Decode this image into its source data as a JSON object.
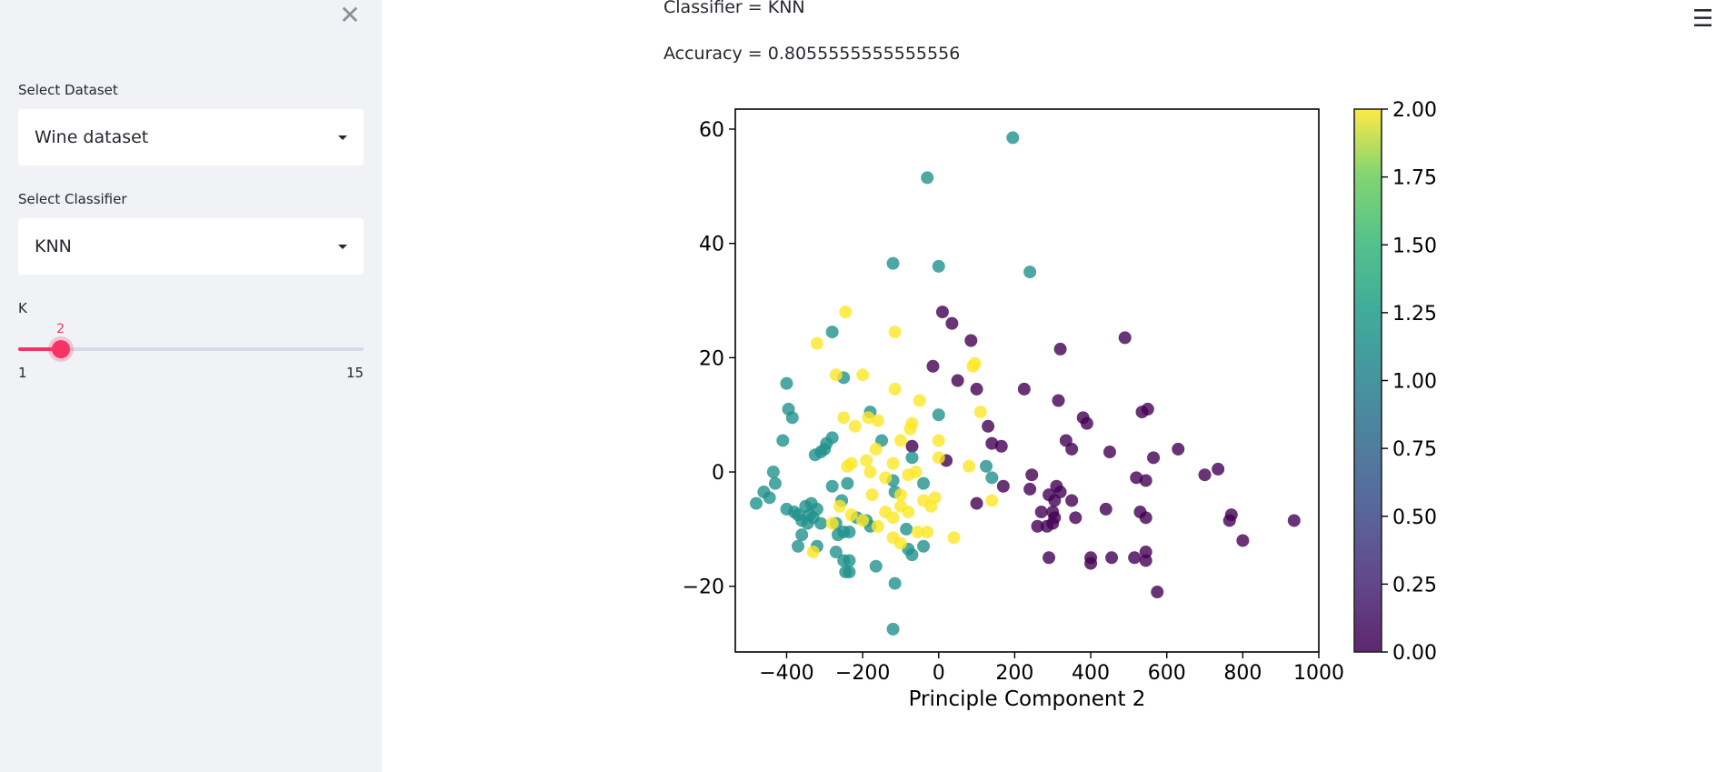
{
  "sidebar": {
    "dataset_label": "Select Dataset",
    "dataset_value": "Wine dataset",
    "classifier_label": "Select Classifier",
    "classifier_value": "KNN",
    "k_label": "K",
    "k_value": "2",
    "k_min": "1",
    "k_max": "15",
    "k_fraction": 0.0714
  },
  "main": {
    "classifier_text": "Classifier = KNN",
    "accuracy_text": "Accuracy = 0.8055555555555556"
  },
  "chart_data": {
    "type": "scatter",
    "xlabel": "Principle Component 2",
    "ylabel": "",
    "xlim": [
      -535,
      1000
    ],
    "ylim": [
      -31.5,
      63.5
    ],
    "xticks": [
      -400,
      -200,
      0,
      200,
      400,
      600,
      800,
      1000
    ],
    "yticks": [
      -20,
      0,
      20,
      40,
      60
    ],
    "colorbar": {
      "min": 0.0,
      "max": 2.0,
      "ticks": [
        "0.00",
        "0.25",
        "0.50",
        "0.75",
        "1.00",
        "1.25",
        "1.50",
        "1.75",
        "2.00"
      ],
      "colormap": "viridis"
    },
    "class_colors": {
      "0": "#440154",
      "1": "#21918c",
      "2": "#fde725"
    },
    "points": {
      "class0": [
        [
          10,
          28
        ],
        [
          35,
          26
        ],
        [
          85,
          23
        ],
        [
          -15,
          18.5
        ],
        [
          50,
          16
        ],
        [
          100,
          14.5
        ],
        [
          225,
          14.5
        ],
        [
          320,
          21.5
        ],
        [
          490,
          23.5
        ],
        [
          380,
          9.5
        ],
        [
          390,
          8.5
        ],
        [
          550,
          11
        ],
        [
          535,
          10.5
        ],
        [
          130,
          8
        ],
        [
          315,
          12.5
        ],
        [
          140,
          5
        ],
        [
          165,
          4.5
        ],
        [
          335,
          5.5
        ],
        [
          350,
          4
        ],
        [
          450,
          3.5
        ],
        [
          565,
          2.5
        ],
        [
          630,
          4
        ],
        [
          -70,
          4.5
        ],
        [
          20,
          2
        ],
        [
          520,
          -1
        ],
        [
          545,
          -1.5
        ],
        [
          700,
          -0.5
        ],
        [
          735,
          0.5
        ],
        [
          245,
          -0.5
        ],
        [
          310,
          -2.5
        ],
        [
          320,
          -3.5
        ],
        [
          240,
          -3
        ],
        [
          170,
          -2.5
        ],
        [
          290,
          -4
        ],
        [
          305,
          -5
        ],
        [
          350,
          -5
        ],
        [
          100,
          -5.5
        ],
        [
          270,
          -7
        ],
        [
          300,
          -7
        ],
        [
          305,
          -8
        ],
        [
          360,
          -8
        ],
        [
          440,
          -6.5
        ],
        [
          530,
          -7
        ],
        [
          545,
          -8
        ],
        [
          770,
          -7.5
        ],
        [
          765,
          -8.5
        ],
        [
          935,
          -8.5
        ],
        [
          300,
          -9
        ],
        [
          285,
          -9.5
        ],
        [
          260,
          -9.5
        ],
        [
          800,
          -12
        ],
        [
          290,
          -15
        ],
        [
          400,
          -15
        ],
        [
          400,
          -16
        ],
        [
          455,
          -15
        ],
        [
          515,
          -15
        ],
        [
          545,
          -14
        ],
        [
          545,
          -15.5
        ],
        [
          575,
          -21
        ]
      ],
      "class1": [
        [
          195,
          58.5
        ],
        [
          -30,
          51.5
        ],
        [
          0,
          36
        ],
        [
          -120,
          36.5
        ],
        [
          240,
          35
        ],
        [
          -280,
          24.5
        ],
        [
          -250,
          16.5
        ],
        [
          -400,
          15.5
        ],
        [
          -395,
          11
        ],
        [
          -385,
          9.5
        ],
        [
          -180,
          10.5
        ],
        [
          0,
          10
        ],
        [
          -150,
          5.5
        ],
        [
          -280,
          6
        ],
        [
          -295,
          5
        ],
        [
          -300,
          4
        ],
        [
          -310,
          3.5
        ],
        [
          -325,
          3
        ],
        [
          -410,
          5.5
        ],
        [
          -70,
          2.5
        ],
        [
          125,
          1
        ],
        [
          140,
          -1
        ],
        [
          -435,
          0
        ],
        [
          -430,
          -2
        ],
        [
          -240,
          -2
        ],
        [
          -280,
          -2.5
        ],
        [
          -120,
          -1.5
        ],
        [
          -40,
          -2
        ],
        [
          -115,
          -3.5
        ],
        [
          -460,
          -3.5
        ],
        [
          -445,
          -4.5
        ],
        [
          -255,
          -5
        ],
        [
          -480,
          -5.5
        ],
        [
          -335,
          -5.5
        ],
        [
          -350,
          -6
        ],
        [
          -320,
          -6.5
        ],
        [
          -400,
          -6.5
        ],
        [
          -380,
          -7
        ],
        [
          -370,
          -7.5
        ],
        [
          -340,
          -7.5
        ],
        [
          -330,
          -8
        ],
        [
          -360,
          -8.5
        ],
        [
          -345,
          -9
        ],
        [
          -310,
          -9
        ],
        [
          -270,
          -9
        ],
        [
          -215,
          -8
        ],
        [
          -190,
          -8.5
        ],
        [
          -180,
          -9.5
        ],
        [
          -250,
          -10.5
        ],
        [
          -235,
          -10.5
        ],
        [
          -360,
          -11
        ],
        [
          -265,
          -11
        ],
        [
          -85,
          -10
        ],
        [
          -320,
          -13
        ],
        [
          -370,
          -13
        ],
        [
          -270,
          -14
        ],
        [
          -80,
          -13.5
        ],
        [
          -70,
          -14.5
        ],
        [
          -40,
          -13
        ],
        [
          -250,
          -15.5
        ],
        [
          -235,
          -15.5
        ],
        [
          -245,
          -17.5
        ],
        [
          -235,
          -17.5
        ],
        [
          -165,
          -16.5
        ],
        [
          -115,
          -19.5
        ],
        [
          -120,
          -27.5
        ]
      ],
      "class2": [
        [
          -245,
          28
        ],
        [
          -115,
          24.5
        ],
        [
          -320,
          22.5
        ],
        [
          -270,
          17
        ],
        [
          -200,
          17
        ],
        [
          -115,
          14.5
        ],
        [
          95,
          19
        ],
        [
          90,
          18.5
        ],
        [
          -50,
          12.5
        ],
        [
          -250,
          9.5
        ],
        [
          -185,
          9.5
        ],
        [
          -160,
          9
        ],
        [
          -70,
          8.5
        ],
        [
          -75,
          7.5
        ],
        [
          -220,
          8
        ],
        [
          110,
          10.5
        ],
        [
          -100,
          5.5
        ],
        [
          0,
          5.5
        ],
        [
          -165,
          4
        ],
        [
          -190,
          2
        ],
        [
          -240,
          1
        ],
        [
          -230,
          1.5
        ],
        [
          -120,
          1.5
        ],
        [
          -180,
          0
        ],
        [
          -140,
          -1
        ],
        [
          -60,
          0
        ],
        [
          -80,
          -0.5
        ],
        [
          0,
          2.5
        ],
        [
          80,
          1
        ],
        [
          -175,
          -4
        ],
        [
          -260,
          -6
        ],
        [
          -100,
          -4
        ],
        [
          -40,
          -5
        ],
        [
          -120,
          -8
        ],
        [
          -200,
          -8.5
        ],
        [
          -140,
          -7
        ],
        [
          -100,
          -6
        ],
        [
          -80,
          -7
        ],
        [
          -20,
          -6
        ],
        [
          -10,
          -4.5
        ],
        [
          -230,
          -7.5
        ],
        [
          -160,
          -9.5
        ],
        [
          -280,
          -9
        ],
        [
          -120,
          -11.5
        ],
        [
          -55,
          -10.5
        ],
        [
          -30,
          -10.5
        ],
        [
          -100,
          -12.5
        ],
        [
          40,
          -11.5
        ],
        [
          140,
          -5
        ],
        [
          -330,
          -14
        ]
      ]
    }
  }
}
